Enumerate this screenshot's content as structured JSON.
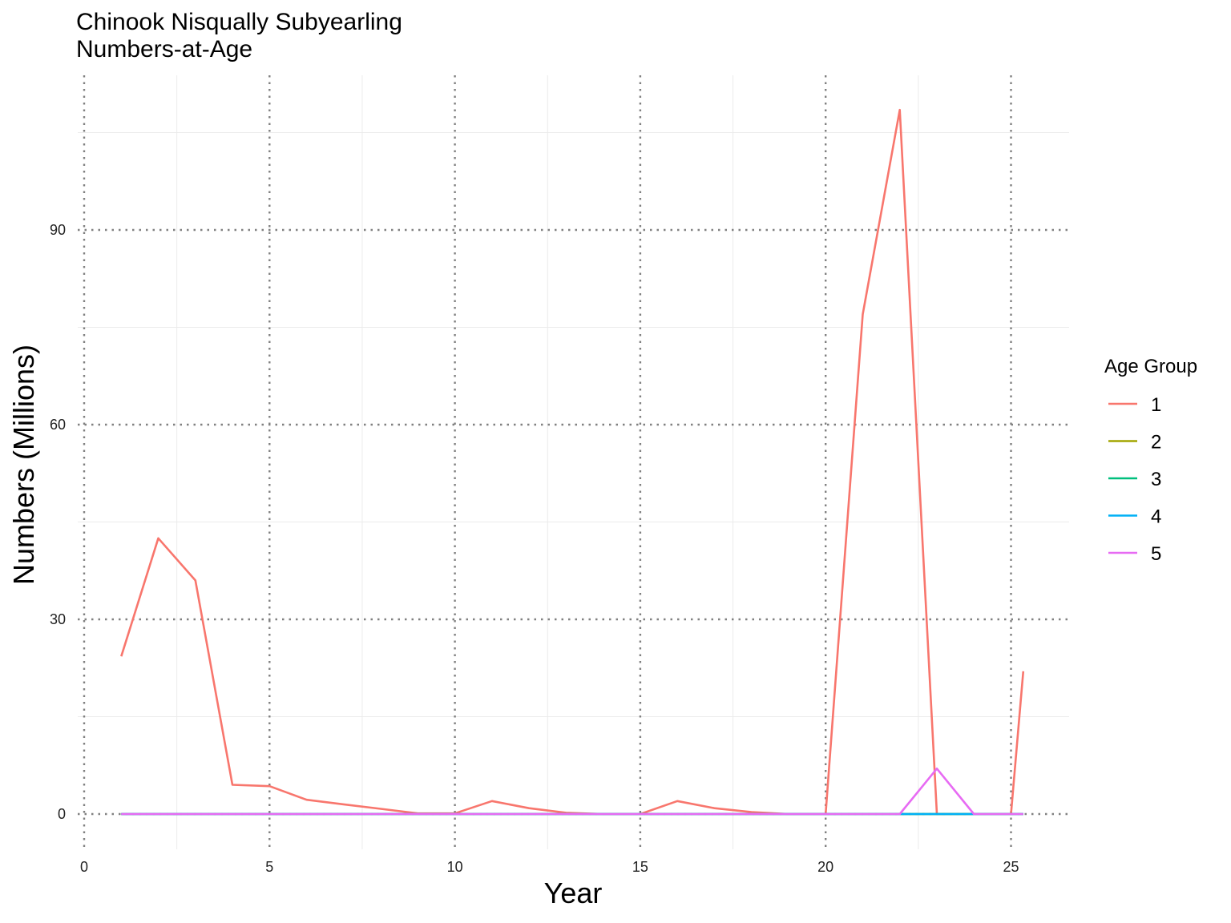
{
  "chart_data": {
    "type": "line",
    "title_lines": [
      "Chinook Nisqually Subyearling",
      "Numbers-at-Age"
    ],
    "xlabel": "Year",
    "ylabel": "Numbers (Millions)",
    "xlim": [
      0,
      26.5
    ],
    "ylim": [
      -5,
      114
    ],
    "x_ticks": [
      0,
      5,
      10,
      15,
      20,
      25
    ],
    "y_ticks": [
      0,
      30,
      60,
      90
    ],
    "x_tick_labels": [
      "0",
      "5",
      "10",
      "15",
      "20",
      "25"
    ],
    "y_tick_labels": [
      "0",
      "30",
      "60",
      "90"
    ],
    "grid": true,
    "legend": {
      "title": "Age Group",
      "position": "right"
    },
    "series": [
      {
        "name": "1",
        "color": "#F8766D",
        "x": [
          1,
          2,
          3,
          4,
          5,
          6,
          7,
          8,
          9,
          10,
          11,
          12,
          13,
          14,
          15,
          16,
          17,
          18,
          19,
          20,
          21,
          22,
          23,
          24,
          25,
          25.33
        ],
        "y": [
          24.3,
          42.5,
          36.0,
          4.5,
          4.3,
          2.2,
          1.5,
          0.8,
          0.1,
          0.1,
          2.0,
          0.9,
          0.2,
          0.0,
          0.0,
          2.0,
          0.9,
          0.3,
          0.0,
          0.0,
          77.0,
          108.5,
          0.0,
          0.0,
          0.0,
          22.0
        ]
      },
      {
        "name": "2",
        "color": "#A3A500",
        "x": [
          1,
          2,
          3,
          4,
          5,
          6,
          7,
          8,
          9,
          10,
          11,
          12,
          13,
          14,
          15,
          16,
          17,
          18,
          19,
          20,
          21,
          22,
          23,
          24,
          25,
          25.33
        ],
        "y": [
          0,
          0,
          0,
          0,
          0,
          0,
          0,
          0,
          0,
          0,
          0,
          0,
          0,
          0,
          0,
          0,
          0,
          0,
          0,
          0,
          0,
          0,
          0,
          0,
          0,
          0
        ]
      },
      {
        "name": "3",
        "color": "#00BF7D",
        "x": [
          1,
          2,
          3,
          4,
          5,
          6,
          7,
          8,
          9,
          10,
          11,
          12,
          13,
          14,
          15,
          16,
          17,
          18,
          19,
          20,
          21,
          22,
          23,
          24,
          25,
          25.33
        ],
        "y": [
          0,
          0,
          0,
          0,
          0,
          0,
          0,
          0,
          0,
          0,
          0,
          0,
          0,
          0,
          0,
          0,
          0,
          0,
          0,
          0,
          0,
          0,
          0,
          0,
          0,
          0
        ]
      },
      {
        "name": "4",
        "color": "#00B0F6",
        "x": [
          1,
          2,
          3,
          4,
          5,
          6,
          7,
          8,
          9,
          10,
          11,
          12,
          13,
          14,
          15,
          16,
          17,
          18,
          19,
          20,
          21,
          22,
          23,
          24,
          25,
          25.33
        ],
        "y": [
          0,
          0,
          0,
          0,
          0,
          0,
          0,
          0,
          0,
          0,
          0,
          0,
          0,
          0,
          0,
          0,
          0,
          0,
          0,
          0,
          0,
          0,
          0,
          0,
          0,
          0
        ]
      },
      {
        "name": "5",
        "color": "#E76BF3",
        "x": [
          1,
          2,
          3,
          4,
          5,
          6,
          7,
          8,
          9,
          10,
          11,
          12,
          13,
          14,
          15,
          16,
          17,
          18,
          19,
          20,
          21,
          22,
          23,
          24,
          25,
          25.33
        ],
        "y": [
          0,
          0,
          0,
          0,
          0,
          0,
          0,
          0,
          0,
          0,
          0,
          0,
          0,
          0,
          0,
          0,
          0,
          0,
          0,
          0,
          0,
          0,
          7.0,
          0,
          0,
          0
        ]
      }
    ]
  }
}
